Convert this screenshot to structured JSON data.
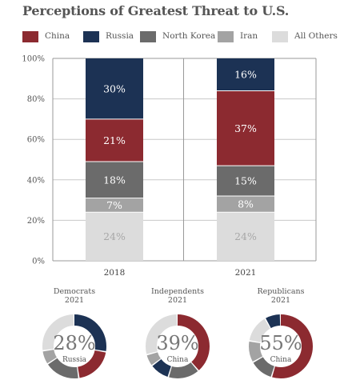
{
  "title": "Perceptions of Greatest Threat to U.S.",
  "colors": {
    "China": "#8c2a30",
    "Russia": "#1c3254",
    "North Korea": "#6b6b6b",
    "Iran": "#a3a3a3",
    "All Others": "#dcdcdc"
  },
  "legend": [
    "China",
    "Russia",
    "North Korea",
    "Iran",
    "All Others"
  ],
  "chart_data": [
    {
      "type": "bar",
      "stacked": true,
      "title": "Perceptions of Greatest Threat to U.S.",
      "categories": [
        "2018",
        "2021"
      ],
      "yticks": [
        "0%",
        "20%",
        "40%",
        "60%",
        "80%",
        "100%"
      ],
      "ylim": [
        0,
        100
      ],
      "grid": true,
      "legend_position": "top",
      "series": [
        {
          "name": "All Others",
          "values": [
            24,
            24
          ],
          "labels": [
            "24%",
            "24%"
          ]
        },
        {
          "name": "Iran",
          "values": [
            7,
            8
          ],
          "labels": [
            "7%",
            "8%"
          ]
        },
        {
          "name": "North Korea",
          "values": [
            18,
            15
          ],
          "labels": [
            "18%",
            "15%"
          ]
        },
        {
          "name": "China",
          "values": [
            21,
            37
          ],
          "labels": [
            "21%",
            "37%"
          ]
        },
        {
          "name": "Russia",
          "values": [
            30,
            16
          ],
          "labels": [
            "30%",
            "16%"
          ]
        }
      ]
    },
    {
      "type": "pie",
      "title": "Democrats",
      "subtitle": "2021",
      "center_value": "28%",
      "center_label": "Russia",
      "slices": [
        {
          "name": "Russia",
          "value": 28
        },
        {
          "name": "China",
          "value": 20
        },
        {
          "name": "North Korea",
          "value": 18
        },
        {
          "name": "Iran",
          "value": 7
        },
        {
          "name": "All Others",
          "value": 27
        }
      ]
    },
    {
      "type": "pie",
      "title": "Independents",
      "subtitle": "2021",
      "center_value": "39%",
      "center_label": "China",
      "slices": [
        {
          "name": "China",
          "value": 39
        },
        {
          "name": "North Korea",
          "value": 16
        },
        {
          "name": "Russia",
          "value": 10
        },
        {
          "name": "Iran",
          "value": 6
        },
        {
          "name": "All Others",
          "value": 29
        }
      ]
    },
    {
      "type": "pie",
      "title": "Republicans",
      "subtitle": "2021",
      "center_value": "55%",
      "center_label": "China",
      "slices": [
        {
          "name": "China",
          "value": 55
        },
        {
          "name": "North Korea",
          "value": 12
        },
        {
          "name": "Iran",
          "value": 11
        },
        {
          "name": "All Others",
          "value": 14
        },
        {
          "name": "Russia",
          "value": 8
        }
      ]
    }
  ]
}
